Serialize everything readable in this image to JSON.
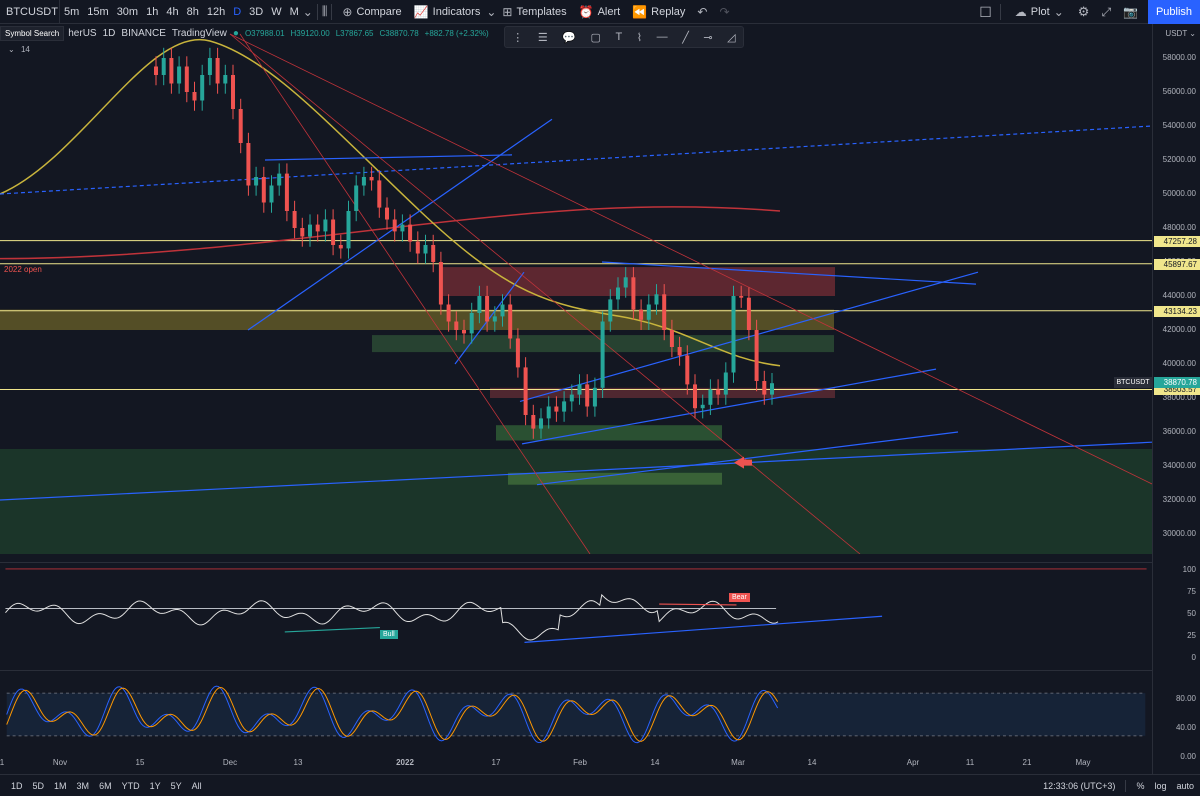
{
  "toolbar": {
    "symbol": "BTCUSDT",
    "intervals": [
      "5m",
      "15m",
      "30m",
      "1h",
      "4h",
      "8h",
      "12h",
      "D",
      "3D",
      "W",
      "M"
    ],
    "active_interval": "D",
    "compare": "Compare",
    "indicators": "Indicators",
    "templates": "Templates",
    "alert": "Alert",
    "replay": "Replay",
    "plot": "Plot",
    "publish": "Publish"
  },
  "legend": {
    "symbol_search": "Symbol Search",
    "title_fragment": "herUS",
    "interval": "1D",
    "exchange": "BINANCE",
    "brand": "TradingView",
    "open": "O37988.01",
    "high": "H39120.00",
    "low": "L37867.65",
    "close": "C38870.78",
    "change": "+882.78 (+2.32%)",
    "counter": "14",
    "open_label": "2022 open"
  },
  "price_axis": {
    "currency": "USDT",
    "ticks": [
      "58000.00",
      "56000.00",
      "54000.00",
      "52000.00",
      "50000.00",
      "48000.00",
      "46000.00",
      "44000.00",
      "42000.00",
      "40000.00",
      "38000.00",
      "36000.00",
      "34000.00",
      "32000.00",
      "30000.00"
    ],
    "tags": [
      "47257.28",
      "45897.67",
      "43134.23",
      "38503.57"
    ],
    "last_price": "38870.78",
    "ticker_tag": "BTCUSDT"
  },
  "rsi_axis": [
    "100",
    "75",
    "50",
    "25",
    "0"
  ],
  "stoch_axis": [
    "80.00",
    "40.00",
    "0.00"
  ],
  "rsi_labels": {
    "bull": "Bull",
    "bear": "Bear"
  },
  "time_axis": [
    "1",
    "Nov",
    "15",
    "Dec",
    "13",
    "2022",
    "17",
    "Feb",
    "14",
    "Mar",
    "14",
    "Apr",
    "11",
    "21",
    "May"
  ],
  "bottom_bar": {
    "ranges": [
      "1D",
      "5D",
      "1M",
      "3M",
      "6M",
      "YTD",
      "1Y",
      "5Y",
      "All"
    ],
    "clock": "12:33:06 (UTC+3)",
    "percent": "%",
    "log": "log",
    "auto": "auto"
  },
  "colors": {
    "background": "#131722",
    "bull": "#26a69a",
    "bear": "#ef5350",
    "trendline": "#2962ff",
    "level": "#f0e68c",
    "ma_yellow": "#c8b43c",
    "ma_red": "#c0333a",
    "accent": "#2962ff"
  }
}
